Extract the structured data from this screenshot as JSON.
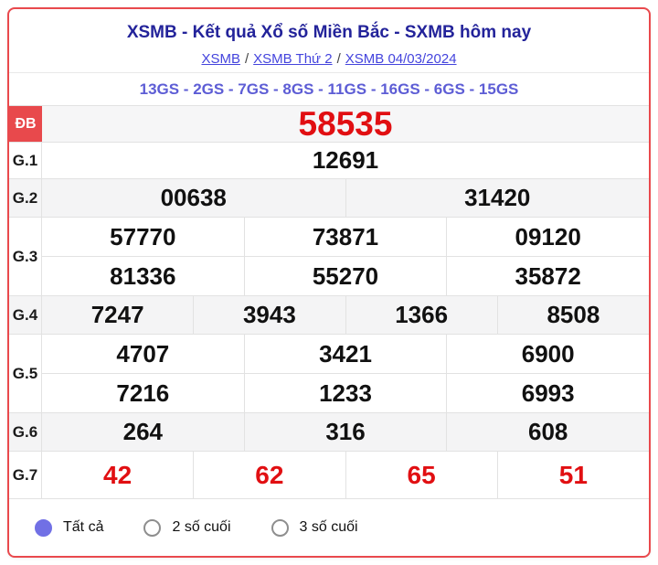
{
  "header": {
    "title": "XSMB - Kết quả Xổ số Miền Bắc - SXMB hôm nay",
    "separator": "/",
    "breadcrumb": [
      {
        "label": "XSMB"
      },
      {
        "label": "XSMB Thứ 2"
      },
      {
        "label": "XSMB 04/03/2024"
      }
    ],
    "gs_line": "13GS - 2GS - 7GS - 8GS - 11GS - 16GS - 6GS - 15GS"
  },
  "results": {
    "db": {
      "label": "ĐB",
      "value": "58535"
    },
    "g1": {
      "label": "G.1",
      "value": "12691"
    },
    "g2": {
      "label": "G.2",
      "values": [
        "00638",
        "31420"
      ]
    },
    "g3": {
      "label": "G.3",
      "row1": [
        "57770",
        "73871",
        "09120"
      ],
      "row2": [
        "81336",
        "55270",
        "35872"
      ]
    },
    "g4": {
      "label": "G.4",
      "values": [
        "7247",
        "3943",
        "1366",
        "8508"
      ]
    },
    "g5": {
      "label": "G.5",
      "row1": [
        "4707",
        "3421",
        "6900"
      ],
      "row2": [
        "7216",
        "1233",
        "6993"
      ]
    },
    "g6": {
      "label": "G.6",
      "values": [
        "264",
        "316",
        "608"
      ]
    },
    "g7": {
      "label": "G.7",
      "values": [
        "42",
        "62",
        "65",
        "51"
      ]
    }
  },
  "filters": {
    "options": [
      {
        "label": "Tất cả",
        "selected": true
      },
      {
        "label": "2 số cuối",
        "selected": false
      },
      {
        "label": "3 số cuối",
        "selected": false
      }
    ]
  },
  "colors": {
    "card_border": "#e9494d",
    "title": "#23239a",
    "link": "#4444dd",
    "gs_text": "#5d5dd5",
    "db_cell_bg": "#e8494c",
    "highlight_red": "#e10f12",
    "radio_selected": "#7170e5",
    "alt_row_bg": "#f4f4f5"
  }
}
